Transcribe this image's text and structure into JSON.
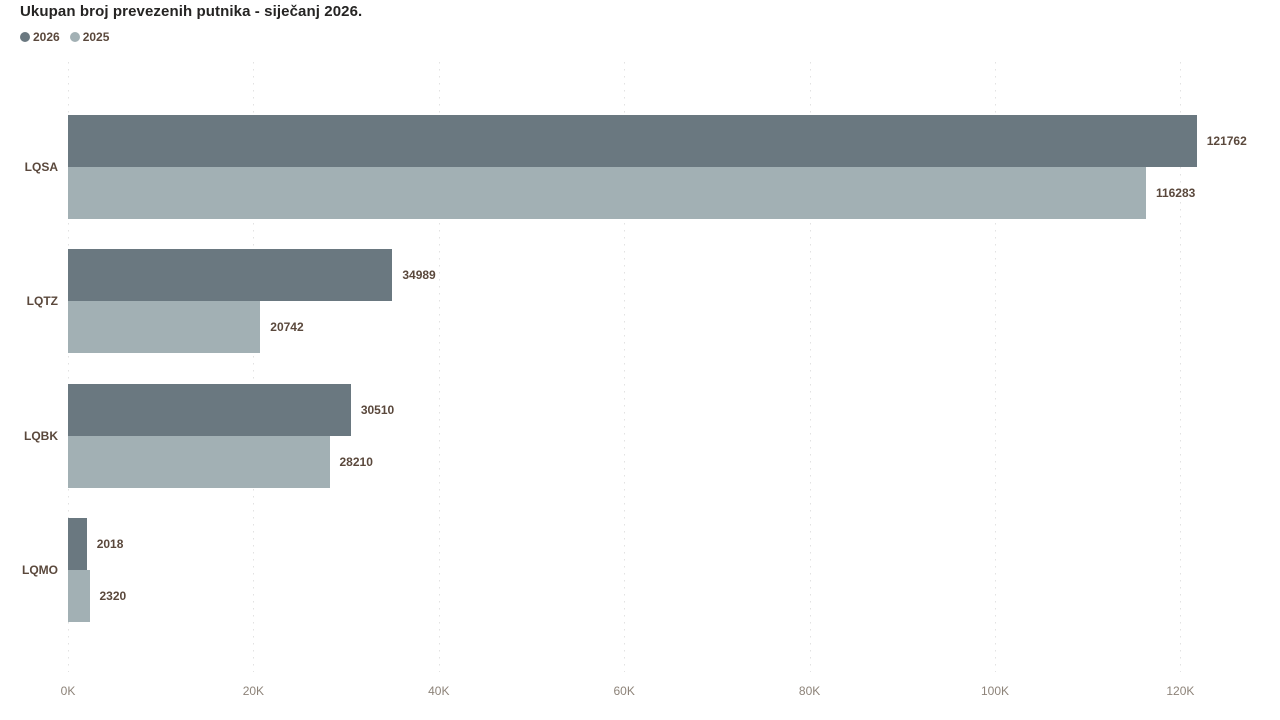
{
  "title": "Ukupan broj prevezenih putnika - siječanj 2026.",
  "legend": {
    "items": [
      {
        "label": "2026",
        "color": "#6a7880"
      },
      {
        "label": "2025",
        "color": "#a2b0b4"
      }
    ]
  },
  "chart_data": {
    "type": "bar",
    "orientation": "horizontal",
    "title": "Ukupan broj prevezenih putnika - siječanj 2026.",
    "categories": [
      "LQSA",
      "LQTZ",
      "LQBK",
      "LQMO"
    ],
    "series": [
      {
        "name": "2026",
        "color": "#6a7880",
        "values": [
          121762,
          34989,
          30510,
          2018
        ]
      },
      {
        "name": "2025",
        "color": "#a2b0b4",
        "values": [
          116283,
          20742,
          28210,
          2320
        ]
      }
    ],
    "data_labels": [
      [
        "121762",
        "116283"
      ],
      [
        "34989",
        "20742"
      ],
      [
        "30510",
        "28210"
      ],
      [
        "2018",
        "2320"
      ]
    ],
    "x_axis": {
      "ticks": [
        0,
        20000,
        40000,
        60000,
        80000,
        100000,
        120000
      ],
      "tick_labels": [
        "0K",
        "20K",
        "40K",
        "60K",
        "80K",
        "100K",
        "120K"
      ],
      "range": [
        0,
        128800
      ]
    },
    "grid": "dotted-vertical",
    "legend_position": "top-left",
    "xlabel": "",
    "ylabel": ""
  },
  "colors": {
    "background": "#ffffff",
    "title_text": "#252423",
    "label_text": "#5a483c",
    "axis_text": "#8d8379",
    "gridline": "#e2e2e2"
  }
}
